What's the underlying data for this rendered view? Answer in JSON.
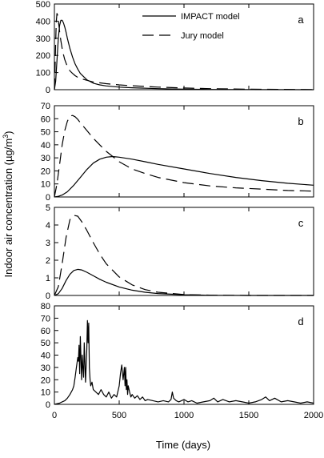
{
  "chart_data": {
    "type": "line",
    "xlabel": "Time (days)",
    "ylabel": "Indoor air concentration (µg/m³)",
    "ylabel_parts": {
      "main": "Indoor air concentration (µg/m",
      "sup": "3",
      "close": ")"
    },
    "xlim": [
      0,
      2000
    ],
    "x_ticks": [
      0,
      500,
      1000,
      1500,
      2000
    ],
    "legend": {
      "placement": "top-center",
      "entries": [
        {
          "name": "IMPACT model",
          "style": "solid"
        },
        {
          "name": "Jury model",
          "style": "dashed"
        }
      ]
    },
    "panels": [
      {
        "label": "a",
        "ylim": [
          0,
          500
        ],
        "y_ticks": [
          0,
          100,
          200,
          300,
          400,
          500
        ],
        "series": [
          {
            "name": "IMPACT model",
            "style": "solid",
            "x": [
              0,
              10,
              20,
              30,
              40,
              50,
              60,
              70,
              80,
              90,
              100,
              120,
              140,
              160,
              180,
              200,
              250,
              300,
              350,
              400,
              500,
              600,
              800,
              1000,
              1200,
              1500,
              2000
            ],
            "y": [
              0,
              50,
              170,
              300,
              375,
              405,
              405,
              390,
              365,
              335,
              300,
              240,
              190,
              150,
              120,
              95,
              58,
              38,
              28,
              22,
              15,
              11,
              6,
              3,
              1.5,
              0.5,
              0
            ]
          },
          {
            "name": "Jury model",
            "style": "dashed",
            "x": [
              0,
              5,
              10,
              15,
              20,
              25,
              30,
              40,
              50,
              60,
              70,
              80,
              100,
              120,
              140,
              160,
              180,
              200,
              300,
              400,
              500,
              600,
              800,
              1000,
              1200,
              1500,
              2000
            ],
            "y": [
              0,
              120,
              280,
              400,
              445,
              435,
              405,
              340,
              285,
              240,
              205,
              175,
              135,
              110,
              95,
              82,
              72,
              65,
              45,
              35,
              28,
              23,
              15,
              10,
              6,
              3,
              1
            ]
          }
        ]
      },
      {
        "label": "b",
        "ylim": [
          0,
          70
        ],
        "y_ticks": [
          0,
          10,
          20,
          30,
          40,
          50,
          60,
          70
        ],
        "series": [
          {
            "name": "IMPACT model",
            "style": "solid",
            "x": [
              0,
              30,
              60,
              100,
              150,
              200,
              250,
              300,
              350,
              400,
              450,
              500,
              600,
              700,
              800,
              1000,
              1200,
              1400,
              1600,
              1800,
              2000
            ],
            "y": [
              0,
              0.5,
              1.5,
              4,
              9,
              15,
              21,
              26,
              29,
              30.5,
              31,
              30.5,
              29,
              27,
              25,
              21.5,
              18,
              15,
              12.5,
              10.5,
              9
            ]
          },
          {
            "name": "Jury model",
            "style": "dashed",
            "x": [
              0,
              20,
              40,
              60,
              80,
              100,
              120,
              140,
              160,
              180,
              200,
              250,
              300,
              350,
              400,
              500,
              600,
              700,
              800,
              1000,
              1200,
              1400,
              1600,
              1800,
              2000
            ],
            "y": [
              0,
              10,
              25,
              40,
              51,
              58,
              62,
              62.5,
              61.5,
              59.5,
              57,
              51,
              45,
              40,
              35,
              27,
              21.5,
              18,
              15,
              11,
              8.5,
              7,
              6,
              5,
              4.5
            ]
          }
        ]
      },
      {
        "label": "c",
        "ylim": [
          0,
          5
        ],
        "y_ticks": [
          0,
          1,
          2,
          3,
          4,
          5
        ],
        "series": [
          {
            "name": "IMPACT model",
            "style": "solid",
            "x": [
              0,
              30,
              60,
              90,
              120,
              150,
              180,
              210,
              250,
              300,
              350,
              400,
              500,
              600,
              700,
              800,
              1000,
              1200,
              1500,
              2000
            ],
            "y": [
              0,
              0.1,
              0.4,
              0.85,
              1.2,
              1.42,
              1.48,
              1.45,
              1.32,
              1.12,
              0.92,
              0.75,
              0.48,
              0.3,
              0.18,
              0.11,
              0.04,
              0.01,
              0,
              0
            ]
          },
          {
            "name": "Jury model",
            "style": "dashed",
            "x": [
              0,
              30,
              60,
              90,
              120,
              150,
              180,
              210,
              250,
              300,
              350,
              400,
              500,
              600,
              700,
              800,
              1000,
              1200,
              1500,
              2000
            ],
            "y": [
              0,
              0.5,
              1.8,
              3.3,
              4.3,
              4.55,
              4.5,
              4.2,
              3.7,
              3.0,
              2.35,
              1.8,
              1.05,
              0.6,
              0.33,
              0.18,
              0.05,
              0.02,
              0,
              0
            ]
          }
        ]
      },
      {
        "label": "d",
        "ylim": [
          0,
          80
        ],
        "y_ticks": [
          0,
          10,
          20,
          30,
          40,
          50,
          60,
          70,
          80
        ],
        "series": [
          {
            "name": "IMPACT model",
            "style": "solid",
            "x": [
              0,
              20,
              40,
              60,
              80,
              100,
              120,
              140,
              150,
              160,
              170,
              180,
              185,
              190,
              195,
              200,
              210,
              215,
              220,
              225,
              230,
              240,
              250,
              255,
              260,
              265,
              270,
              275,
              280,
              290,
              300,
              320,
              340,
              360,
              380,
              400,
              420,
              440,
              460,
              480,
              500,
              510,
              520,
              530,
              540,
              545,
              550,
              555,
              560,
              565,
              570,
              580,
              590,
              600,
              620,
              640,
              660,
              680,
              700,
              720,
              760,
              800,
              840,
              880,
              900,
              910,
              920,
              940,
              960,
              980,
              1000,
              1030,
              1060,
              1100,
              1150,
              1200,
              1230,
              1260,
              1300,
              1350,
              1400,
              1450,
              1500,
              1550,
              1600,
              1630,
              1660,
              1700,
              1750,
              1800,
              1850,
              1900,
              1950,
              2000
            ],
            "y": [
              0,
              0.5,
              1,
              2,
              3,
              5,
              8,
              12,
              15,
              22,
              30,
              38,
              35,
              48,
              25,
              55,
              20,
              40,
              30,
              22,
              50,
              18,
              45,
              68,
              50,
              66,
              30,
              20,
              15,
              18,
              12,
              10,
              8,
              12,
              8,
              6,
              10,
              5,
              8,
              6,
              15,
              25,
              32,
              20,
              30,
              15,
              30,
              12,
              20,
              8,
              15,
              10,
              6,
              8,
              5,
              7,
              4,
              6,
              3,
              4,
              3,
              2,
              3,
              2,
              4,
              10,
              5,
              3,
              2,
              3,
              4,
              2,
              3,
              1,
              2,
              3,
              5,
              2,
              4,
              2,
              3,
              2,
              1,
              2,
              4,
              6,
              3,
              5,
              2,
              3,
              2,
              1,
              2,
              1
            ]
          }
        ]
      }
    ]
  }
}
